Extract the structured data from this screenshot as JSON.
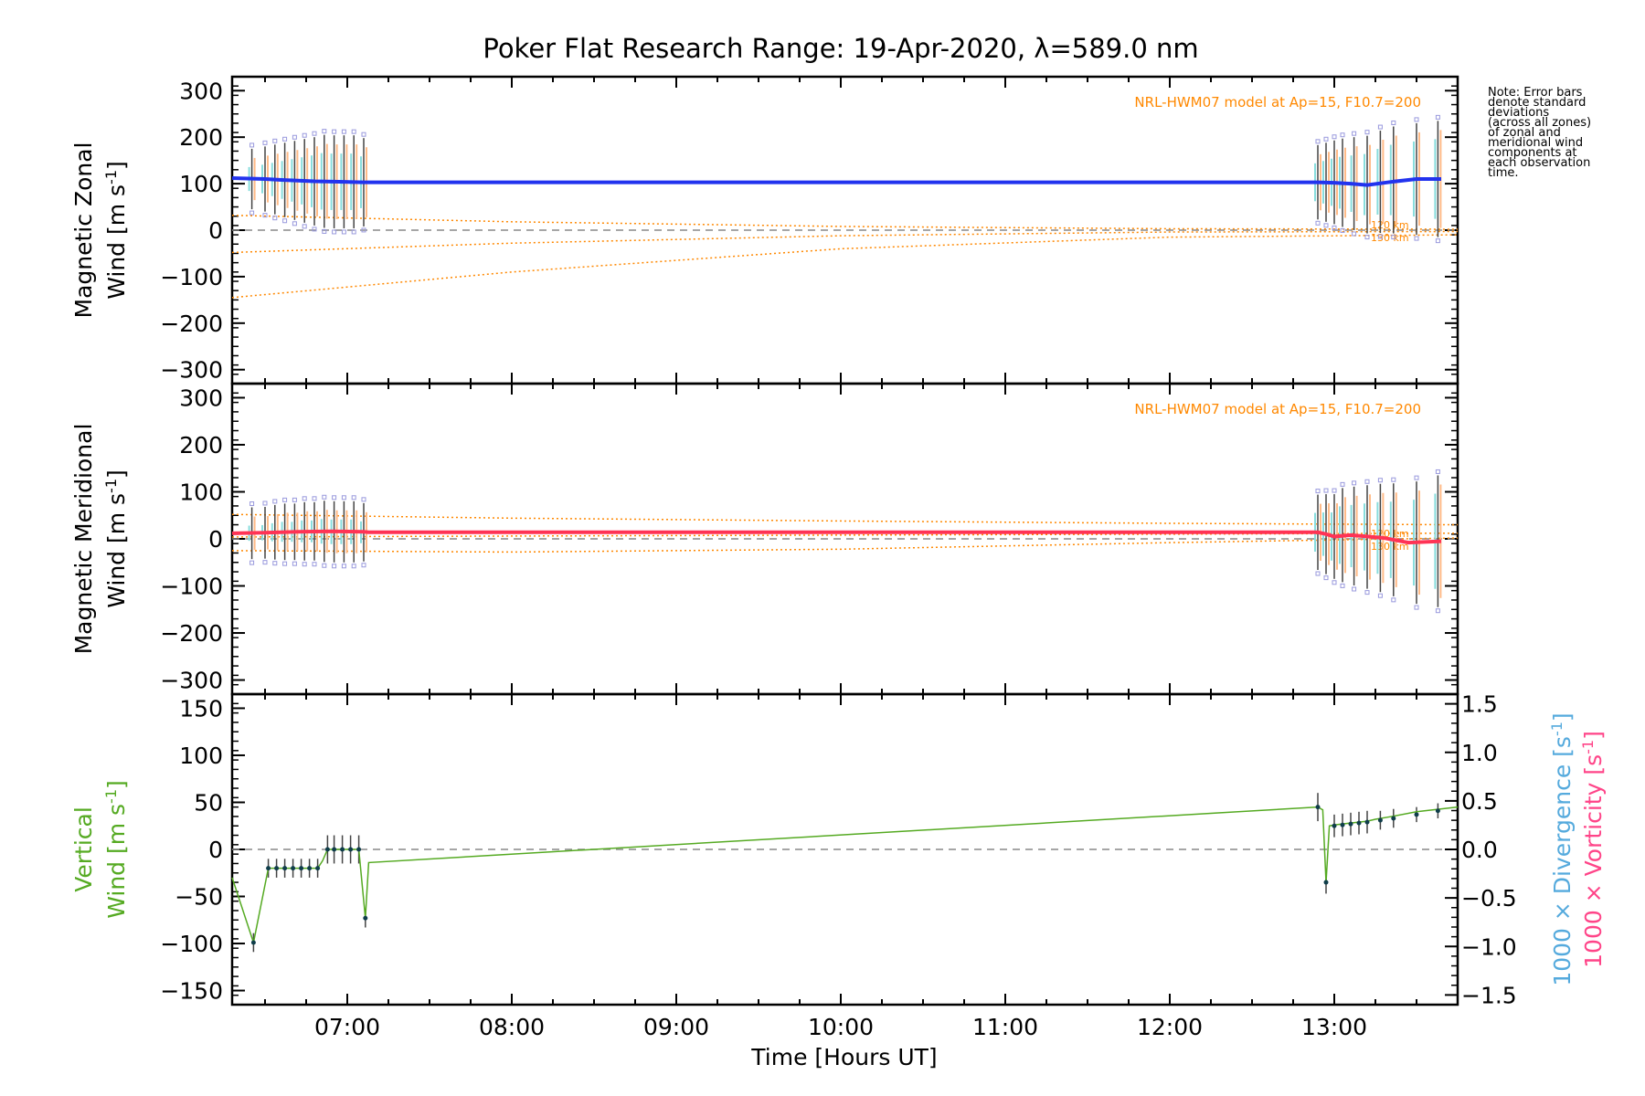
{
  "chart_data": {
    "title": "Poker Flat Research Range: 19-Apr-2020, λ=589.0 nm",
    "xlabel": "Time [Hours UT]",
    "x_ticks": [
      "07:00",
      "08:00",
      "09:00",
      "10:00",
      "11:00",
      "12:00",
      "13:00"
    ],
    "xlim": [
      6.3,
      13.75
    ],
    "note_lines": [
      "Note: Error bars",
      "denote standard",
      "deviations",
      "(across all zones)",
      "of zonal and",
      "meridional wind",
      "components at",
      "each observation",
      "time."
    ],
    "colors": {
      "zonal": "#2233ee",
      "meridional": "#ff3355",
      "vertical": "#55aa22",
      "model": "#ff8800",
      "divergence": "#55aadd",
      "vorticity": "#ff4488",
      "zone_points": "#9999dd"
    },
    "panels": [
      {
        "name": "zonal",
        "type": "line",
        "ylabel_line1": "Magnetic Zonal",
        "ylabel_line2": "Wind [m s",
        "ylabel_sup": "-1",
        "ylabel_close": "]",
        "ylim": [
          -330,
          330
        ],
        "yticks": [
          -300,
          -200,
          -100,
          0,
          100,
          200,
          300
        ],
        "model_label": "NRL-HWM07 model at Ap=15, F10.7=200",
        "model_alt_labels": [
          "120 km",
          "130 km"
        ],
        "series": {
          "x": [
            6.3,
            6.5,
            6.6,
            6.8,
            6.95,
            7.1,
            7.13,
            12.9,
            13.0,
            13.1,
            13.2,
            13.35,
            13.5,
            13.65
          ],
          "y": [
            112,
            110,
            108,
            105,
            104,
            103,
            103,
            103,
            102,
            100,
            97,
            104,
            110,
            110
          ]
        },
        "model_curves": [
          {
            "x": [
              6.3,
              8.0,
              10.0,
              12.0,
              13.75
            ],
            "y": [
              32,
              18,
              8,
              3,
              2
            ]
          },
          {
            "x": [
              6.3,
              8.0,
              10.0,
              12.0,
              13.75
            ],
            "y": [
              -48,
              -28,
              -12,
              -4,
              -3
            ]
          },
          {
            "x": [
              6.3,
              8.0,
              10.0,
              12.0,
              13.75
            ],
            "y": [
              -145,
              -90,
              -40,
              -15,
              -10
            ]
          }
        ],
        "errorbars": {
          "times": [
            6.42,
            6.5,
            6.56,
            6.62,
            6.68,
            6.74,
            6.8,
            6.86,
            6.92,
            6.98,
            7.04,
            7.1,
            12.9,
            12.95,
            13.0,
            13.05,
            13.12,
            13.2,
            13.28,
            13.36,
            13.5,
            13.63
          ],
          "center": [
            110,
            110,
            109,
            108,
            107,
            106,
            105,
            105,
            104,
            104,
            104,
            103,
            103,
            103,
            103,
            102,
            100,
            98,
            104,
            108,
            110,
            110
          ],
          "sd": [
            65,
            70,
            75,
            80,
            85,
            90,
            95,
            100,
            100,
            100,
            100,
            95,
            80,
            85,
            90,
            95,
            100,
            105,
            110,
            115,
            120,
            125
          ]
        }
      },
      {
        "name": "meridional",
        "type": "line",
        "ylabel_line1": "Magnetic Meridional",
        "ylabel_line2": "Wind [m s",
        "ylabel_sup": "-1",
        "ylabel_close": "]",
        "ylim": [
          -330,
          330
        ],
        "yticks": [
          -300,
          -200,
          -100,
          0,
          100,
          200,
          300
        ],
        "model_label": "NRL-HWM07 model at Ap=15, F10.7=200",
        "model_alt_labels": [
          "120 km",
          "130 km"
        ],
        "series": {
          "x": [
            6.3,
            6.5,
            6.7,
            6.9,
            7.1,
            7.13,
            12.9,
            12.95,
            13.0,
            13.1,
            13.2,
            13.3,
            13.45,
            13.65
          ],
          "y": [
            12,
            13,
            15,
            16,
            15,
            14,
            14,
            10,
            5,
            8,
            5,
            2,
            -8,
            -5
          ]
        },
        "model_curves": [
          {
            "x": [
              6.3,
              8.0,
              10.0,
              12.0,
              13.75
            ],
            "y": [
              52,
              44,
              38,
              33,
              30
            ]
          },
          {
            "x": [
              6.3,
              8.0,
              10.0,
              12.0,
              13.75
            ],
            "y": [
              -25,
              -28,
              -22,
              -8,
              2
            ]
          },
          {
            "x": [
              6.3,
              8.0,
              10.0,
              12.0,
              13.75
            ],
            "y": [
              4,
              6,
              8,
              10,
              12
            ]
          }
        ],
        "errorbars": {
          "times": [
            6.42,
            6.5,
            6.56,
            6.62,
            6.68,
            6.74,
            6.8,
            6.86,
            6.92,
            6.98,
            7.04,
            7.1,
            12.9,
            12.95,
            13.0,
            13.05,
            13.12,
            13.2,
            13.28,
            13.36,
            13.5,
            13.63
          ],
          "center": [
            12,
            13,
            14,
            15,
            15,
            16,
            16,
            16,
            15,
            15,
            15,
            14,
            14,
            10,
            5,
            8,
            6,
            4,
            2,
            -2,
            -8,
            -5
          ],
          "sd": [
            55,
            55,
            58,
            60,
            60,
            62,
            62,
            65,
            65,
            65,
            65,
            62,
            80,
            85,
            90,
            100,
            105,
            110,
            115,
            120,
            130,
            140
          ]
        }
      },
      {
        "name": "vertical",
        "type": "line",
        "ylabel_line1": "Vertical",
        "ylabel_line2": "Wind [m s",
        "ylabel_sup": "-1",
        "ylabel_close": "]",
        "ylim": [
          -165,
          165
        ],
        "yticks": [
          -150,
          -100,
          -50,
          0,
          50,
          100,
          150
        ],
        "right_ylim": [
          -1.6,
          1.6
        ],
        "right_yticks": [
          "1.5",
          "1.0",
          "0.5",
          "0.0",
          "−0.5",
          "−1.0",
          "−1.5"
        ],
        "right_label_div": "1000 × Divergence [s",
        "right_label_vor": "1000 × Vorticity [s",
        "right_sup": "-1",
        "right_close": "]",
        "series": {
          "x": [
            6.3,
            6.43,
            6.52,
            6.57,
            6.62,
            6.67,
            6.72,
            6.77,
            6.82,
            6.85,
            6.88,
            6.92,
            6.97,
            7.02,
            7.07,
            7.11,
            7.13,
            12.9,
            12.93,
            12.95,
            12.97,
            13.0,
            13.05,
            13.1,
            13.15,
            13.2,
            13.25,
            13.35,
            13.5,
            13.75
          ],
          "y": [
            -30,
            -99,
            -20,
            -20,
            -20,
            -20,
            -20,
            -20,
            -20,
            -12,
            0,
            0,
            0,
            0,
            0,
            -73,
            -14,
            45,
            42,
            -35,
            25,
            26,
            27,
            28,
            29,
            30,
            32,
            35,
            40,
            45
          ]
        },
        "errorbars": {
          "times": [
            6.43,
            6.52,
            6.57,
            6.62,
            6.67,
            6.72,
            6.77,
            6.82,
            6.88,
            6.92,
            6.97,
            7.02,
            7.07,
            7.11,
            12.9,
            12.95,
            13.0,
            13.05,
            13.1,
            13.15,
            13.2,
            13.28,
            13.36,
            13.5,
            13.63
          ],
          "center": [
            -99,
            -20,
            -20,
            -20,
            -20,
            -20,
            -20,
            -20,
            0,
            0,
            0,
            0,
            0,
            -73,
            45,
            -35,
            25,
            26,
            27,
            28,
            29,
            31,
            33,
            37,
            41
          ],
          "sd": [
            10,
            10,
            10,
            10,
            10,
            10,
            10,
            10,
            15,
            15,
            15,
            15,
            15,
            10,
            15,
            12,
            12,
            12,
            12,
            12,
            12,
            10,
            10,
            8,
            8
          ]
        }
      }
    ]
  }
}
